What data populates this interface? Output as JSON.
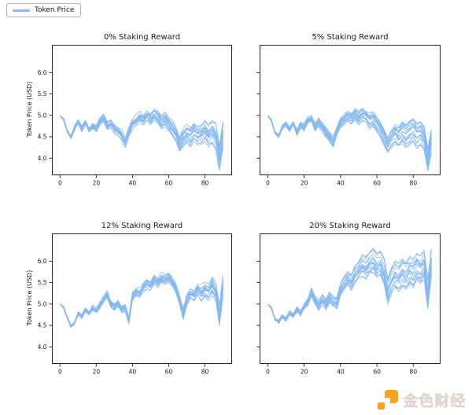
{
  "legend": {
    "label": "Token Price"
  },
  "watermark": {
    "text": "金色财经",
    "logo_color": "#F9A11B"
  },
  "colors": {
    "line": "#86B9F0",
    "axis": "#262626",
    "text": "#1a1a1a"
  },
  "chart_data": [
    {
      "type": "line",
      "title": "0% Staking Reward",
      "xlabel": "",
      "ylabel": "Token Price (USD)",
      "x_start": 0,
      "x_step": 2,
      "xlim": [
        -4.5,
        95
      ],
      "ylim": [
        3.6,
        6.65
      ],
      "xticks": [
        0,
        20,
        40,
        60,
        80
      ],
      "yticks": [
        4.0,
        4.5,
        5.0,
        5.5,
        6.0
      ],
      "n_paths": 18,
      "seed": 1,
      "show_yticklabels": true,
      "base": [
        5.0,
        4.9,
        4.62,
        4.5,
        4.72,
        4.86,
        4.7,
        4.85,
        4.66,
        4.76,
        4.7,
        4.86,
        4.96,
        4.76,
        4.82,
        4.7,
        4.64,
        4.54,
        4.35,
        4.62,
        4.8,
        4.86,
        4.96,
        4.9,
        5.0,
        4.92,
        5.02,
        4.96,
        4.86,
        4.92,
        4.8,
        4.7,
        4.55,
        4.32,
        4.46,
        4.56,
        4.5,
        4.62,
        4.52,
        4.56,
        4.66,
        4.52,
        4.62,
        4.5,
        4.0,
        4.55
      ],
      "spread": [
        0.0,
        0.02,
        0.03,
        0.04,
        0.05,
        0.05,
        0.06,
        0.06,
        0.07,
        0.07,
        0.08,
        0.08,
        0.08,
        0.09,
        0.09,
        0.09,
        0.1,
        0.1,
        0.1,
        0.1,
        0.11,
        0.11,
        0.12,
        0.12,
        0.12,
        0.13,
        0.13,
        0.13,
        0.14,
        0.14,
        0.14,
        0.15,
        0.15,
        0.16,
        0.17,
        0.18,
        0.19,
        0.2,
        0.21,
        0.22,
        0.22,
        0.23,
        0.23,
        0.24,
        0.24,
        0.25
      ]
    },
    {
      "type": "line",
      "title": "5% Staking Reward",
      "xlabel": "",
      "ylabel": "",
      "x_start": 0,
      "x_step": 2,
      "xlim": [
        -4.5,
        95
      ],
      "ylim": [
        3.6,
        6.65
      ],
      "xticks": [
        0,
        20,
        40,
        60,
        80
      ],
      "yticks": [
        4.0,
        4.5,
        5.0,
        5.5,
        6.0
      ],
      "n_paths": 18,
      "seed": 2,
      "show_yticklabels": false,
      "base": [
        5.0,
        4.88,
        4.6,
        4.52,
        4.74,
        4.82,
        4.68,
        4.82,
        4.62,
        4.78,
        4.72,
        4.88,
        4.92,
        4.72,
        4.84,
        4.72,
        4.6,
        4.5,
        4.36,
        4.64,
        4.82,
        4.9,
        4.98,
        4.92,
        5.02,
        4.94,
        5.04,
        4.98,
        4.88,
        4.92,
        4.78,
        4.66,
        4.5,
        4.3,
        4.44,
        4.56,
        4.48,
        4.6,
        4.52,
        4.58,
        4.64,
        4.52,
        4.58,
        4.46,
        3.98,
        4.4
      ],
      "spread": [
        0.0,
        0.02,
        0.03,
        0.04,
        0.05,
        0.05,
        0.06,
        0.06,
        0.07,
        0.07,
        0.08,
        0.08,
        0.08,
        0.09,
        0.09,
        0.09,
        0.1,
        0.1,
        0.1,
        0.1,
        0.11,
        0.11,
        0.12,
        0.12,
        0.12,
        0.13,
        0.13,
        0.13,
        0.14,
        0.14,
        0.14,
        0.15,
        0.15,
        0.16,
        0.17,
        0.18,
        0.19,
        0.2,
        0.21,
        0.22,
        0.22,
        0.23,
        0.23,
        0.24,
        0.24,
        0.25
      ]
    },
    {
      "type": "line",
      "title": "12% Staking Reward",
      "xlabel": "",
      "ylabel": "Token Price (USD)",
      "x_start": 0,
      "x_step": 2,
      "xlim": [
        -4.5,
        95
      ],
      "ylim": [
        3.6,
        6.65
      ],
      "xticks": [
        0,
        20,
        40,
        60,
        80
      ],
      "yticks": [
        4.0,
        4.5,
        5.0,
        5.5,
        6.0
      ],
      "n_paths": 18,
      "seed": 3,
      "show_yticklabels": true,
      "base": [
        5.0,
        4.92,
        4.68,
        4.48,
        4.56,
        4.78,
        4.7,
        4.86,
        4.78,
        4.9,
        4.84,
        4.96,
        5.1,
        5.22,
        5.0,
        4.92,
        5.02,
        4.88,
        4.92,
        4.62,
        5.18,
        5.28,
        5.24,
        5.38,
        5.48,
        5.42,
        5.56,
        5.5,
        5.62,
        5.56,
        5.64,
        5.52,
        5.36,
        5.12,
        4.78,
        5.12,
        5.26,
        5.2,
        5.34,
        5.26,
        5.36,
        5.3,
        5.44,
        5.3,
        4.74,
        5.42
      ],
      "spread": [
        0.0,
        0.02,
        0.03,
        0.04,
        0.04,
        0.05,
        0.05,
        0.06,
        0.06,
        0.07,
        0.07,
        0.08,
        0.08,
        0.08,
        0.09,
        0.09,
        0.09,
        0.1,
        0.1,
        0.1,
        0.1,
        0.11,
        0.11,
        0.11,
        0.12,
        0.12,
        0.12,
        0.13,
        0.13,
        0.13,
        0.14,
        0.14,
        0.14,
        0.15,
        0.15,
        0.16,
        0.16,
        0.17,
        0.17,
        0.18,
        0.18,
        0.19,
        0.19,
        0.2,
        0.2,
        0.2
      ]
    },
    {
      "type": "line",
      "title": "20% Staking Reward",
      "xlabel": "",
      "ylabel": "",
      "x_start": 0,
      "x_step": 2,
      "xlim": [
        -4.5,
        95
      ],
      "ylim": [
        3.6,
        6.65
      ],
      "xticks": [
        0,
        20,
        40,
        60,
        80
      ],
      "yticks": [
        4.0,
        4.5,
        5.0,
        5.5,
        6.0
      ],
      "n_paths": 18,
      "seed": 4,
      "show_yticklabels": false,
      "base": [
        5.0,
        4.9,
        4.66,
        4.58,
        4.72,
        4.64,
        4.78,
        4.72,
        4.88,
        4.8,
        4.94,
        5.06,
        5.28,
        5.1,
        4.98,
        5.12,
        5.02,
        5.16,
        5.06,
        5.02,
        5.36,
        5.5,
        5.62,
        5.54,
        5.72,
        5.8,
        5.9,
        5.84,
        5.96,
        6.0,
        5.88,
        5.94,
        5.74,
        5.3,
        5.56,
        5.7,
        5.62,
        5.76,
        5.68,
        5.8,
        5.72,
        5.86,
        5.78,
        5.88,
        5.2,
        5.95
      ],
      "spread": [
        0.0,
        0.02,
        0.04,
        0.05,
        0.06,
        0.06,
        0.07,
        0.07,
        0.08,
        0.08,
        0.09,
        0.09,
        0.1,
        0.1,
        0.11,
        0.11,
        0.12,
        0.12,
        0.13,
        0.13,
        0.14,
        0.15,
        0.16,
        0.17,
        0.18,
        0.19,
        0.2,
        0.21,
        0.22,
        0.23,
        0.24,
        0.24,
        0.25,
        0.25,
        0.26,
        0.26,
        0.27,
        0.27,
        0.28,
        0.28,
        0.29,
        0.29,
        0.3,
        0.3,
        0.3,
        0.3
      ]
    }
  ]
}
